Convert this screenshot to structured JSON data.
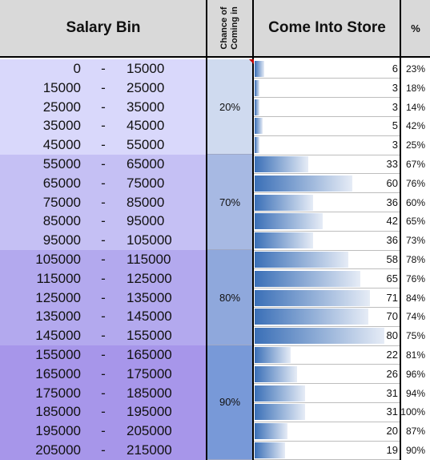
{
  "header": {
    "salary_bin": "Salary Bin",
    "chance": "Chance of Coming in",
    "come_into_store": "Come Into Store",
    "percent": "%"
  },
  "groups": [
    {
      "chance": "20%",
      "color": "#d9d8fb",
      "cell_color": "#cfdaef"
    },
    {
      "chance": "70%",
      "color": "#c5c0f4",
      "cell_color": "#a7b9e3"
    },
    {
      "chance": "80%",
      "color": "#b3a9ee",
      "cell_color": "#8fa8dc"
    },
    {
      "chance": "90%",
      "color": "#a796ea",
      "cell_color": "#7899d8"
    }
  ],
  "chart_data": {
    "type": "table",
    "columns": [
      "Salary Bin",
      "Chance of Coming in",
      "Come Into Store",
      "%"
    ],
    "max_bar_value": 80,
    "rows": [
      {
        "low": "0",
        "high": "15000",
        "count": 6,
        "pct": "23%"
      },
      {
        "low": "15000",
        "high": "25000",
        "count": 3,
        "pct": "18%"
      },
      {
        "low": "25000",
        "high": "35000",
        "count": 3,
        "pct": "14%"
      },
      {
        "low": "35000",
        "high": "45000",
        "count": 5,
        "pct": "42%"
      },
      {
        "low": "45000",
        "high": "55000",
        "count": 3,
        "pct": "25%"
      },
      {
        "low": "55000",
        "high": "65000",
        "count": 33,
        "pct": "67%"
      },
      {
        "low": "65000",
        "high": "75000",
        "count": 60,
        "pct": "76%"
      },
      {
        "low": "75000",
        "high": "85000",
        "count": 36,
        "pct": "60%"
      },
      {
        "low": "85000",
        "high": "95000",
        "count": 42,
        "pct": "65%"
      },
      {
        "low": "95000",
        "high": "105000",
        "count": 36,
        "pct": "73%"
      },
      {
        "low": "105000",
        "high": "115000",
        "count": 58,
        "pct": "78%"
      },
      {
        "low": "115000",
        "high": "125000",
        "count": 65,
        "pct": "76%"
      },
      {
        "low": "125000",
        "high": "135000",
        "count": 71,
        "pct": "84%"
      },
      {
        "low": "135000",
        "high": "145000",
        "count": 70,
        "pct": "74%"
      },
      {
        "low": "145000",
        "high": "155000",
        "count": 80,
        "pct": "75%"
      },
      {
        "low": "155000",
        "high": "165000",
        "count": 22,
        "pct": "81%"
      },
      {
        "low": "165000",
        "high": "175000",
        "count": 26,
        "pct": "96%"
      },
      {
        "low": "175000",
        "high": "185000",
        "count": 31,
        "pct": "94%"
      },
      {
        "low": "185000",
        "high": "195000",
        "count": 31,
        "pct": "100%"
      },
      {
        "low": "195000",
        "high": "205000",
        "count": 20,
        "pct": "87%"
      },
      {
        "low": "205000",
        "high": "215000",
        "count": 19,
        "pct": "90%"
      }
    ]
  }
}
